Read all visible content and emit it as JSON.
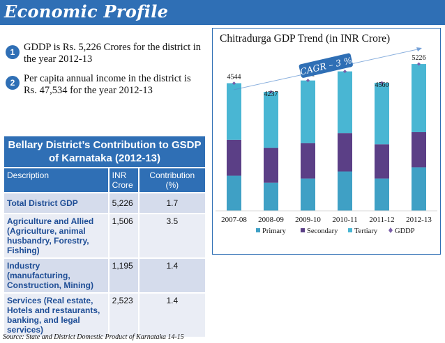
{
  "page_title": "Economic Profile",
  "bullets": [
    {
      "num": "1",
      "text": "GDDP is Rs. 5,226 Crores for the district in the year 2012-13"
    },
    {
      "num": "2",
      "text": "Per capita annual income in the district is Rs. 47,534 for the year 2012-13"
    }
  ],
  "table": {
    "title": "Bellary District’s Contribution to GSDP of Karnataka (2012-13)",
    "headers": [
      "Description",
      "INR Crore",
      "Contribution (%)"
    ],
    "rows": [
      {
        "desc": "Total District GDP",
        "sub": "",
        "inr": "5,226",
        "pct": "1.7"
      },
      {
        "desc": "Agriculture and Allied",
        "sub": " (Agriculture, animal husbandry, Forestry, Fishing)",
        "inr": "1,506",
        "pct": "3.5"
      },
      {
        "desc": "Industry",
        "sub": "(manufacturing, Construction, Mining)",
        "inr": "1,195",
        "pct": "1.4"
      },
      {
        "desc": "Services",
        "sub": "(Real estate, Hotels and restaurants, banking, and  legal services)",
        "inr": "2,523",
        "pct": "1.4"
      }
    ]
  },
  "source": "Source: State and District Domestic Product of Karnataka 14-15",
  "chart_data": {
    "type": "bar",
    "title": "Chitradurga GDP Trend (in INR Crore)",
    "annotation": "CAGR – 3 %",
    "categories": [
      "2007-08",
      "2008-09",
      "2009-10",
      "2010-11",
      "2011-12",
      "2012-13"
    ],
    "stacked": true,
    "series": [
      {
        "name": "Primary",
        "values": [
          1250,
          1000,
          1150,
          1400,
          1150,
          1550
        ],
        "color": "#3fa0c5"
      },
      {
        "name": "Secondary",
        "values": [
          1280,
          1240,
          1260,
          1370,
          1220,
          1250
        ],
        "color": "#5b3f86"
      },
      {
        "name": "Tertiary",
        "values": [
          2014,
          1997,
          2231,
          2195,
          2190,
          2426
        ],
        "color": "#49b6d3"
      }
    ],
    "line": {
      "name": "GDDP",
      "values": [
        4544,
        4237,
        4641,
        4965,
        4560,
        5226
      ],
      "color": "#7b5fa8"
    },
    "data_labels": [
      "4544",
      "4237",
      "4641",
      "4965",
      "4560",
      "5226"
    ],
    "ylim": [
      0,
      5500
    ],
    "grid": false,
    "legend": "bottom"
  }
}
